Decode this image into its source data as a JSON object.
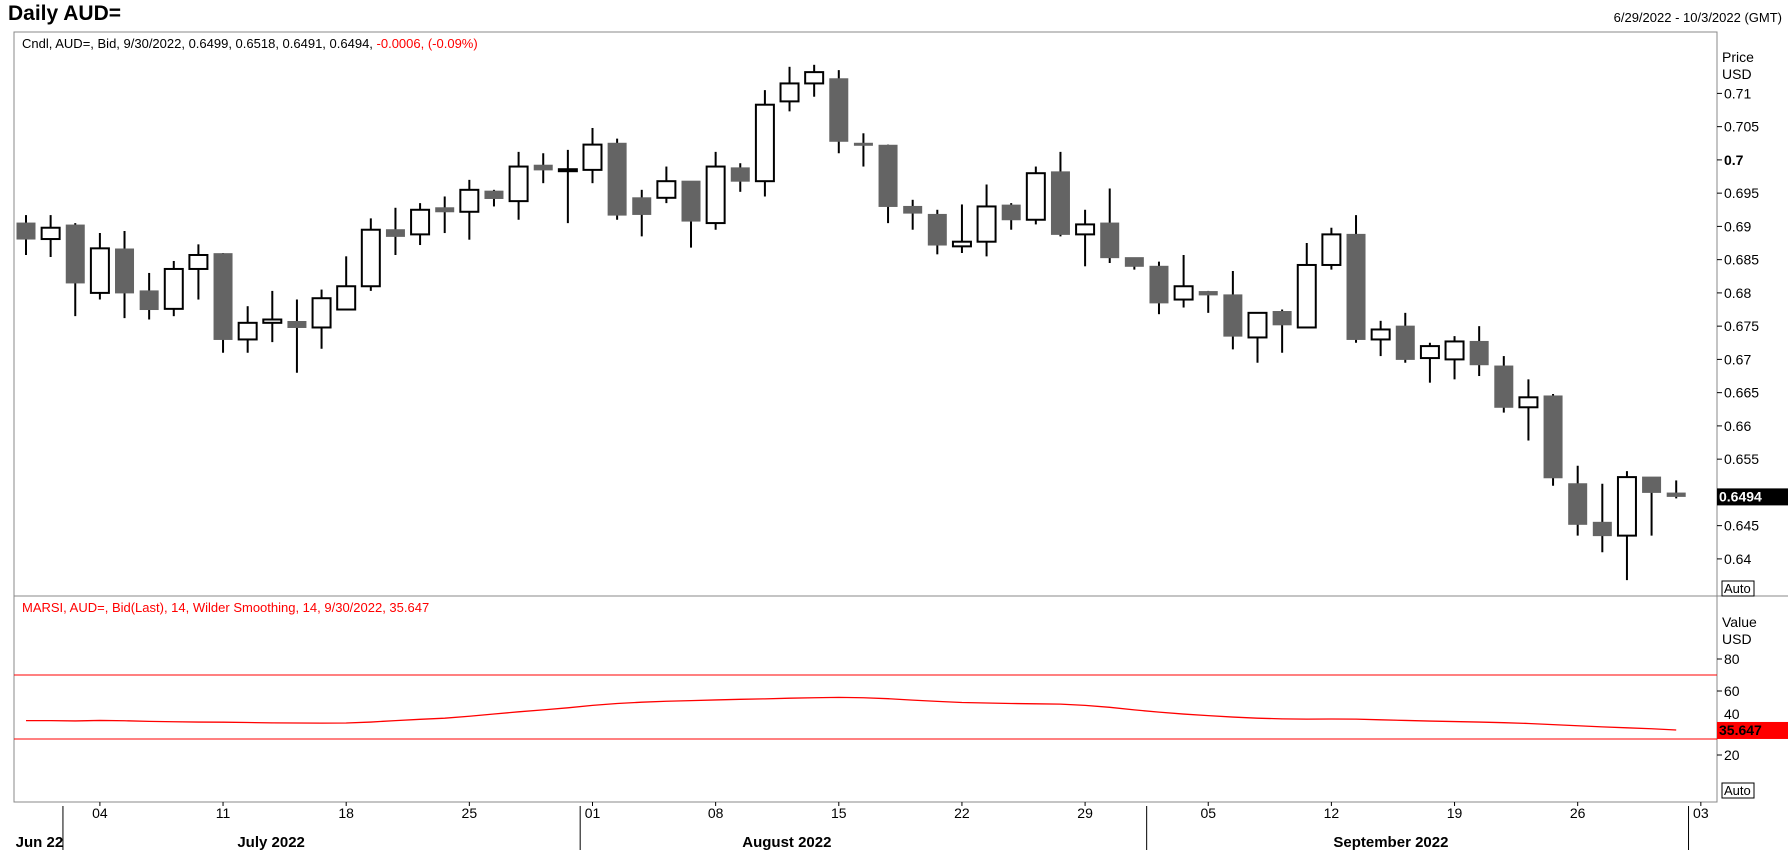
{
  "header": {
    "title": "Daily AUD=",
    "date_range": "6/29/2022 - 10/3/2022 (GMT)"
  },
  "colors": {
    "down": "#646464",
    "up": "#ffffff",
    "outline": "#000000",
    "rsi": "#ff0000",
    "last_price_bg": "#000000",
    "last_rsi_bg": "#ff0000"
  },
  "chart_data": [
    {
      "type": "candlestick",
      "legend": {
        "text": "Cndl, AUD=, Bid, 9/30/2022, 0.6499, 0.6518, 0.6491, 0.6494, ",
        "change": "-0.0006, (-0.09%)"
      },
      "y_axis": {
        "title": "Price",
        "unit": "USD",
        "ticks": [
          "0.71",
          "0.705",
          "0.7",
          "0.695",
          "0.69",
          "0.685",
          "0.68",
          "0.675",
          "0.67",
          "0.665",
          "0.66",
          "0.655",
          "0.645",
          "0.64"
        ],
        "range": [
          0.636,
          0.716
        ],
        "auto_label": "Auto"
      },
      "last_value": "0.6494",
      "dates": [
        "6/29",
        "6/30",
        "7/1",
        "7/4",
        "7/5",
        "7/6",
        "7/7",
        "7/8",
        "7/11",
        "7/12",
        "7/13",
        "7/14",
        "7/15",
        "7/18",
        "7/19",
        "7/20",
        "7/21",
        "7/22",
        "7/25",
        "7/26",
        "7/27",
        "7/28",
        "7/29",
        "8/1",
        "8/2",
        "8/3",
        "8/4",
        "8/5",
        "8/8",
        "8/9",
        "8/10",
        "8/11",
        "8/12",
        "8/15",
        "8/16",
        "8/17",
        "8/18",
        "8/19",
        "8/22",
        "8/23",
        "8/24",
        "8/25",
        "8/26",
        "8/29",
        "8/30",
        "8/31",
        "9/1",
        "9/2",
        "9/5",
        "9/6",
        "9/7",
        "9/8",
        "9/9",
        "9/12",
        "9/13",
        "9/14",
        "9/15",
        "9/16",
        "9/19",
        "9/20",
        "9/21",
        "9/22",
        "9/23",
        "9/26",
        "9/27",
        "9/28",
        "9/29",
        "9/30"
      ],
      "ohlc": [
        [
          0.6905,
          0.6917,
          0.6857,
          0.6881
        ],
        [
          0.6881,
          0.6917,
          0.6854,
          0.6898
        ],
        [
          0.6902,
          0.6905,
          0.6765,
          0.6815
        ],
        [
          0.68,
          0.689,
          0.679,
          0.6867
        ],
        [
          0.6866,
          0.6893,
          0.6762,
          0.68
        ],
        [
          0.6803,
          0.683,
          0.676,
          0.6775
        ],
        [
          0.6776,
          0.6848,
          0.6765,
          0.6836
        ],
        [
          0.6836,
          0.6873,
          0.679,
          0.6857
        ],
        [
          0.6859,
          0.686,
          0.671,
          0.673
        ],
        [
          0.673,
          0.678,
          0.671,
          0.6755
        ],
        [
          0.6755,
          0.6803,
          0.6726,
          0.676
        ],
        [
          0.6757,
          0.679,
          0.668,
          0.6748
        ],
        [
          0.6748,
          0.6805,
          0.6716,
          0.6792
        ],
        [
          0.6775,
          0.6855,
          0.6774,
          0.681
        ],
        [
          0.681,
          0.6912,
          0.6803,
          0.6895
        ],
        [
          0.6895,
          0.6928,
          0.6857,
          0.6885
        ],
        [
          0.6888,
          0.6935,
          0.6872,
          0.6925
        ],
        [
          0.6928,
          0.6945,
          0.689,
          0.6922
        ],
        [
          0.6922,
          0.697,
          0.688,
          0.6955
        ],
        [
          0.6953,
          0.6955,
          0.693,
          0.6942
        ],
        [
          0.6938,
          0.7012,
          0.691,
          0.699
        ],
        [
          0.6992,
          0.701,
          0.6965,
          0.6985
        ],
        [
          0.6985,
          0.7015,
          0.6905,
          0.6986
        ],
        [
          0.6985,
          0.7048,
          0.6965,
          0.7023
        ],
        [
          0.7025,
          0.7032,
          0.691,
          0.6917
        ],
        [
          0.6943,
          0.6955,
          0.6885,
          0.6918
        ],
        [
          0.6943,
          0.699,
          0.6935,
          0.6968
        ],
        [
          0.6968,
          0.6968,
          0.6868,
          0.6908
        ],
        [
          0.6905,
          0.7012,
          0.6895,
          0.699
        ],
        [
          0.6988,
          0.6995,
          0.6952,
          0.6968
        ],
        [
          0.6968,
          0.7105,
          0.6945,
          0.7083
        ],
        [
          0.7088,
          0.714,
          0.7073,
          0.7115
        ],
        [
          0.7115,
          0.7143,
          0.7095,
          0.7132
        ],
        [
          0.7122,
          0.7135,
          0.701,
          0.7028
        ],
        [
          0.7025,
          0.704,
          0.699,
          0.7022
        ],
        [
          0.7022,
          0.7023,
          0.6905,
          0.693
        ],
        [
          0.693,
          0.694,
          0.6895,
          0.692
        ],
        [
          0.6918,
          0.6925,
          0.6858,
          0.6872
        ],
        [
          0.687,
          0.6933,
          0.686,
          0.6877
        ],
        [
          0.6877,
          0.6963,
          0.6855,
          0.693
        ],
        [
          0.6932,
          0.6935,
          0.6895,
          0.691
        ],
        [
          0.691,
          0.699,
          0.6903,
          0.698
        ],
        [
          0.6982,
          0.7012,
          0.6885,
          0.6888
        ],
        [
          0.6888,
          0.6925,
          0.684,
          0.6903
        ],
        [
          0.6905,
          0.6957,
          0.6845,
          0.6853
        ],
        [
          0.6853,
          0.6853,
          0.6835,
          0.684
        ],
        [
          0.684,
          0.6847,
          0.6768,
          0.6785
        ],
        [
          0.679,
          0.6857,
          0.6778,
          0.681
        ],
        [
          0.6802,
          0.6803,
          0.677,
          0.6797
        ],
        [
          0.6797,
          0.6833,
          0.6715,
          0.6735
        ],
        [
          0.6733,
          0.677,
          0.6695,
          0.677
        ],
        [
          0.6772,
          0.6775,
          0.671,
          0.6752
        ],
        [
          0.6748,
          0.6875,
          0.6747,
          0.6842
        ],
        [
          0.6842,
          0.6898,
          0.6835,
          0.6888
        ],
        [
          0.6888,
          0.6917,
          0.6725,
          0.673
        ],
        [
          0.673,
          0.6758,
          0.6705,
          0.6745
        ],
        [
          0.675,
          0.677,
          0.6695,
          0.67
        ],
        [
          0.6702,
          0.6725,
          0.6665,
          0.672
        ],
        [
          0.67,
          0.6735,
          0.667,
          0.6727
        ],
        [
          0.6727,
          0.675,
          0.6675,
          0.6692
        ],
        [
          0.669,
          0.6705,
          0.662,
          0.6628
        ],
        [
          0.6628,
          0.667,
          0.6578,
          0.6643
        ],
        [
          0.6645,
          0.6648,
          0.651,
          0.6522
        ],
        [
          0.6513,
          0.654,
          0.6435,
          0.6452
        ],
        [
          0.6455,
          0.6513,
          0.641,
          0.6435
        ],
        [
          0.6435,
          0.6532,
          0.6368,
          0.6523
        ],
        [
          0.6523,
          0.6523,
          0.6435,
          0.65
        ],
        [
          0.6499,
          0.6518,
          0.6491,
          0.6494
        ]
      ]
    },
    {
      "type": "line",
      "legend": {
        "text": "MARSI, AUD=, Bid(Last),  14, Wilder Smoothing, 14, 9/30/2022, 35.647"
      },
      "y_axis": {
        "title": "Value",
        "unit": "USD",
        "ticks": [
          "80",
          "60",
          "40",
          "20"
        ],
        "range": [
          5,
          95
        ],
        "auto_label": "Auto"
      },
      "bands": [
        70,
        30
      ],
      "last_value": "35.647",
      "values": [
        41.5,
        41.5,
        41.3,
        41.6,
        41.4,
        41.0,
        40.8,
        40.6,
        40.5,
        40.3,
        40.1,
        40.0,
        39.9,
        40.0,
        40.6,
        41.5,
        42.3,
        43.0,
        44.2,
        45.6,
        47.0,
        48.2,
        49.5,
        51.0,
        52.2,
        53.0,
        53.6,
        54.0,
        54.4,
        54.8,
        55.1,
        55.5,
        55.8,
        56.0,
        55.8,
        55.2,
        54.3,
        53.5,
        52.8,
        52.5,
        52.2,
        52.0,
        51.8,
        51.0,
        49.8,
        48.2,
        46.8,
        45.6,
        44.6,
        43.7,
        43.0,
        42.6,
        42.4,
        42.5,
        42.4,
        42.0,
        41.6,
        41.2,
        40.9,
        40.6,
        40.2,
        39.7,
        39.0,
        38.3,
        37.6,
        37.0,
        36.4,
        35.647
      ]
    }
  ],
  "x_axis": {
    "day_labels": [
      {
        "label": "04",
        "index": 3
      },
      {
        "label": "11",
        "index": 8
      },
      {
        "label": "18",
        "index": 13
      },
      {
        "label": "25",
        "index": 18
      },
      {
        "label": "01",
        "index": 23
      },
      {
        "label": "08",
        "index": 28
      },
      {
        "label": "15",
        "index": 33
      },
      {
        "label": "22",
        "index": 38
      },
      {
        "label": "29",
        "index": 43
      },
      {
        "label": "05",
        "index": 48
      },
      {
        "label": "12",
        "index": 53
      },
      {
        "label": "19",
        "index": 58
      },
      {
        "label": "26",
        "index": 63
      },
      {
        "label": "03",
        "index": 68
      }
    ],
    "month_labels": [
      {
        "label": "Jun 22",
        "index": -0.5
      },
      {
        "label": "July 2022",
        "index": 8.5
      },
      {
        "label": "August 2022",
        "index": 29
      },
      {
        "label": "September 2022",
        "index": 53
      }
    ],
    "month_boundaries": [
      1.5,
      22.5,
      45.5,
      67.5
    ]
  }
}
